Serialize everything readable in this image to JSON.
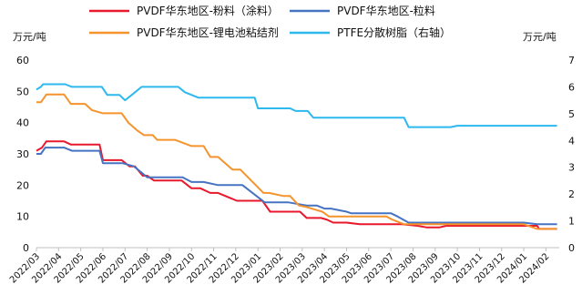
{
  "chart_data": {
    "type": "line",
    "ylabel_left": "万元/吨",
    "ylabel_right": "万元/吨",
    "ylim_left": [
      0,
      60
    ],
    "yticks_left": [
      0,
      10,
      20,
      30,
      40,
      50,
      60
    ],
    "ylim_right": [
      0,
      7
    ],
    "yticks_right": [
      0,
      1,
      2,
      3,
      4,
      5,
      6,
      7
    ],
    "x_ticks": [
      "2022/03",
      "2022/04",
      "2022/05",
      "2022/06",
      "2022/07",
      "2022/08",
      "2022/09",
      "2022/10",
      "2022/11",
      "2022/12",
      "2023/01",
      "2023/02",
      "2023/03",
      "2023/04",
      "2023/05",
      "2023/06",
      "2023/07",
      "2023/08",
      "2023/09",
      "2023/10",
      "2023/11",
      "2023/12",
      "2024/01",
      "2024/02"
    ],
    "x_range": [
      0,
      23.6
    ],
    "grid": false,
    "legend_position": "top",
    "series": [
      {
        "name": "PVDF华东地区-粉料（涂料）",
        "color": "#e8192c",
        "axis": "left",
        "x": [
          0,
          0.25,
          0.45,
          1.25,
          1.55,
          2.85,
          3.0,
          3.85,
          4.2,
          4.45,
          4.8,
          5.0,
          5.3,
          6.25,
          6.55,
          7.0,
          7.4,
          7.85,
          8.2,
          9.05,
          9.2,
          10.2,
          10.55,
          11.9,
          12.2,
          12.85,
          13.1,
          13.4,
          14.0,
          14.6,
          15.45,
          15.9,
          16.1,
          16.5,
          17.2,
          17.6,
          18.2,
          18.5,
          19.0,
          20.0,
          21.0,
          22.0,
          22.6,
          22.7,
          23.5
        ],
        "y": [
          31,
          32,
          34,
          34,
          33,
          33,
          28,
          28,
          26,
          26,
          23,
          23,
          21.5,
          21.5,
          21.5,
          19,
          19,
          17.5,
          17.5,
          15,
          15,
          15,
          11.5,
          11.5,
          9.5,
          9.5,
          9,
          8,
          8,
          7.5,
          7.5,
          7.5,
          7.5,
          7.5,
          7,
          6.5,
          6.5,
          7,
          7,
          7,
          7,
          7,
          7,
          6,
          6
        ]
      },
      {
        "name": "PVDF华东地区-粒料",
        "color": "#4673c2",
        "axis": "left",
        "x": [
          0,
          0.2,
          0.4,
          1.25,
          1.6,
          2.85,
          3.0,
          3.7,
          3.9,
          4.4,
          4.75,
          5.0,
          6.25,
          6.6,
          7.0,
          7.3,
          7.55,
          8.2,
          8.5,
          9.15,
          9.3,
          10.3,
          10.4,
          11.0,
          11.35,
          12.2,
          12.65,
          13.0,
          13.3,
          14.0,
          14.2,
          14.5,
          15.0,
          15.55,
          16.0,
          16.3,
          16.8,
          17.2,
          18.0,
          19.0,
          20.0,
          21.0,
          22.0,
          22.6,
          23.5
        ],
        "y": [
          30,
          30,
          32,
          32,
          31,
          31,
          27,
          27,
          27,
          26,
          24,
          22.5,
          22.5,
          22.5,
          21,
          21,
          21,
          20,
          20,
          20,
          20,
          14.5,
          14.5,
          14.5,
          14.5,
          13.5,
          13.5,
          12.5,
          12.5,
          11.5,
          11,
          11,
          11,
          11,
          11,
          10,
          8,
          8,
          8,
          8,
          8,
          8,
          8,
          7.5,
          7.5
        ]
      },
      {
        "name": "PVDF华东地区-锂电池粘结剂",
        "color": "#f5932d",
        "axis": "left",
        "x": [
          0,
          0.2,
          0.45,
          1.25,
          1.55,
          2.2,
          2.5,
          3.0,
          3.85,
          4.15,
          4.55,
          4.85,
          5.25,
          5.45,
          6.0,
          6.25,
          7.0,
          7.55,
          7.85,
          8.2,
          8.85,
          9.1,
          9.2,
          10.25,
          10.5,
          11.15,
          11.45,
          11.85,
          12.2,
          12.9,
          13.0,
          13.2,
          14.4,
          15.8,
          16.05,
          16.6,
          17.0,
          18.0,
          19.0,
          20.0,
          21.0,
          22.0,
          22.6,
          23.5
        ],
        "y": [
          46.5,
          46.5,
          49,
          49,
          46,
          46,
          44,
          43,
          43,
          40,
          37.5,
          36,
          36,
          34.5,
          34.5,
          34.5,
          32.5,
          32.5,
          29,
          29,
          25,
          25,
          25,
          17.5,
          17.5,
          16.5,
          16.5,
          13.5,
          13,
          11.5,
          11,
          10,
          10,
          10,
          9,
          7.5,
          7.5,
          7.5,
          7.5,
          7.5,
          7.5,
          7.5,
          6,
          6
        ]
      },
      {
        "name": "PTFE分散树脂（右轴）",
        "color": "#2db8ee",
        "axis": "right",
        "x": [
          0,
          0.2,
          0.3,
          1.3,
          1.6,
          2.95,
          3.2,
          3.75,
          4.0,
          4.3,
          4.75,
          5.0,
          6.4,
          6.7,
          7.3,
          7.65,
          9.85,
          10.0,
          11.45,
          11.7,
          12.25,
          12.5,
          14.3,
          14.6,
          15.5,
          16.0,
          16.6,
          16.8,
          17.0,
          18.7,
          19.0,
          20.0,
          21.0,
          22.0,
          23.5
        ],
        "y": [
          5.9,
          6.0,
          6.1,
          6.1,
          6.0,
          6.0,
          5.7,
          5.7,
          5.5,
          5.7,
          6.0,
          6.0,
          6.0,
          5.8,
          5.6,
          5.6,
          5.6,
          5.2,
          5.2,
          5.1,
          5.1,
          4.85,
          4.85,
          4.85,
          4.85,
          4.85,
          4.85,
          4.5,
          4.5,
          4.5,
          4.55,
          4.55,
          4.55,
          4.55,
          4.55
        ]
      }
    ]
  }
}
